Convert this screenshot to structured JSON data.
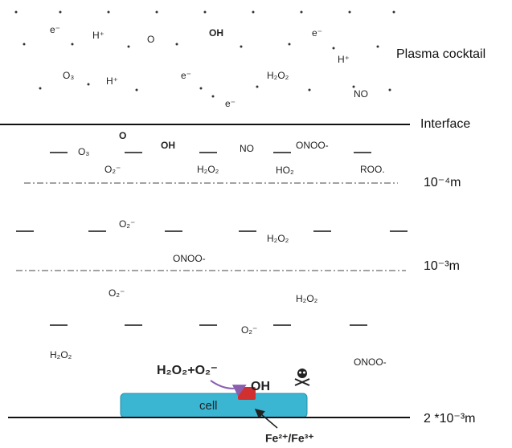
{
  "plasma_species": [
    "e⁻",
    "H⁺",
    "O",
    "OH",
    "e⁻",
    "O₃",
    "H⁺",
    "e⁻",
    "H₂O₂",
    "H⁺",
    "e⁻",
    "NO"
  ],
  "liquid_species": [
    "O",
    "OH",
    "O₃",
    "NO",
    "ONOO-",
    "O₂⁻",
    "H₂O₂",
    "HO₂",
    "ROO.",
    "O₂⁻",
    "H₂O₂",
    "ONOO-",
    "O₂⁻",
    "H₂O₂",
    "O₂⁻",
    "H₂O₂",
    "ONOO-"
  ],
  "layers": {
    "plasma": "Plasma cocktail",
    "interface": "Interface",
    "depth_1": "10⁻⁴m",
    "depth_2": "10⁻³m",
    "depth_3": "2 *10⁻³m"
  },
  "reaction": {
    "reactants": "H₂O₂+O₂⁻",
    "product": "OH",
    "cell": "cell",
    "catalyst": "Fe²⁺/Fe³⁺"
  }
}
